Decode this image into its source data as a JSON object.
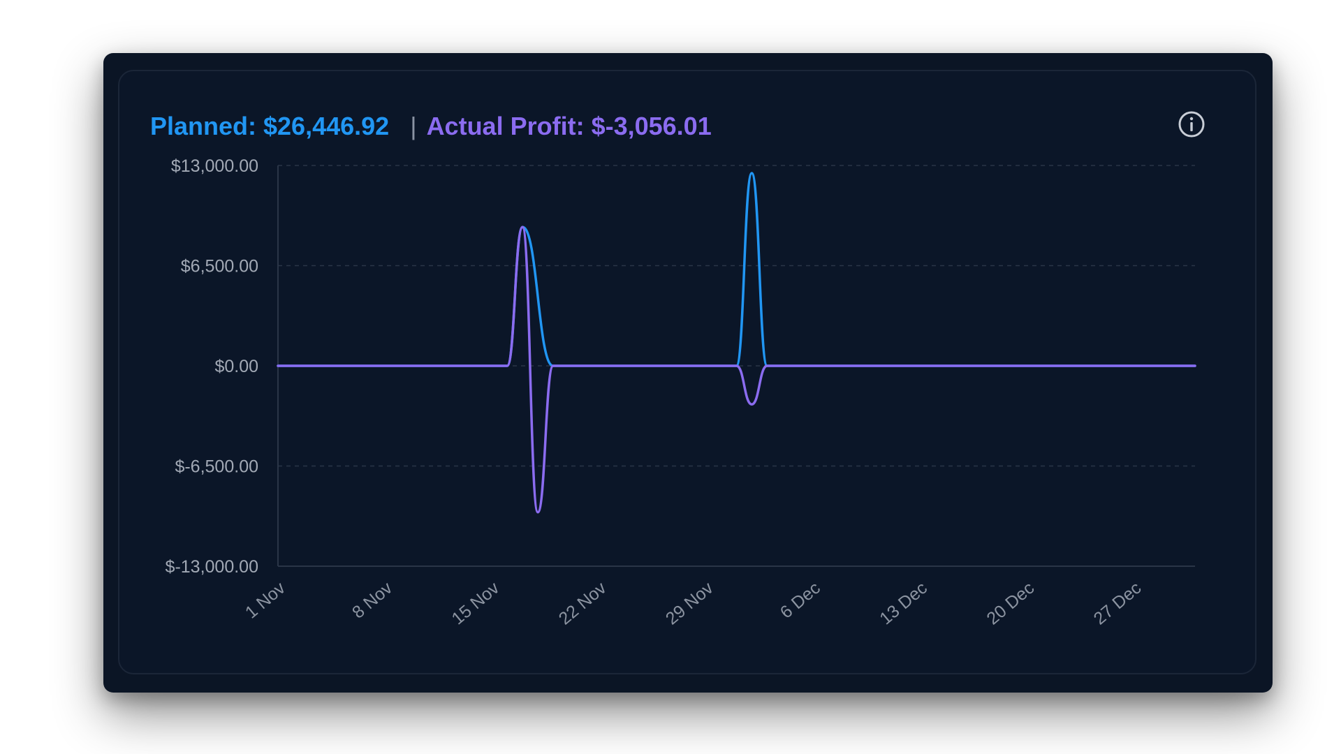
{
  "header": {
    "planned_label": "Planned: $26,446.92",
    "separator": "|",
    "actual_label": "Actual Profit: $-3,056.01"
  },
  "colors": {
    "planned": "#2196f3",
    "actual": "#8b6cf0",
    "background": "#0b1628",
    "grid": "#2a3547",
    "tick_text": "#a2a9b5"
  },
  "icons": {
    "info": "info-circle-icon"
  },
  "chart_data": {
    "type": "line",
    "x_axis": "date",
    "x_ticks": [
      "1 Nov",
      "8 Nov",
      "15 Nov",
      "22 Nov",
      "29 Nov",
      "6 Dec",
      "13 Dec",
      "20 Dec",
      "27 Dec"
    ],
    "x_range": [
      "1 Nov",
      "31 Dec"
    ],
    "y_ticks": [
      "$13,000.00",
      "$6,500.00",
      "$0.00",
      "$-6,500.00",
      "$-13,000.00"
    ],
    "ylim": [
      -13000,
      13000
    ],
    "grid": "horizontal dashed",
    "legend": "none",
    "series": [
      {
        "name": "Planned",
        "color": "#2196f3",
        "points": [
          [
            "1 Nov",
            0
          ],
          [
            "16 Nov",
            0
          ],
          [
            "17 Nov",
            9000
          ],
          [
            "19 Nov",
            0
          ],
          [
            "1 Dec",
            0
          ],
          [
            "2 Dec",
            12500
          ],
          [
            "3 Dec",
            0
          ],
          [
            "31 Dec",
            0
          ]
        ]
      },
      {
        "name": "Actual Profit",
        "color": "#8b6cf0",
        "points": [
          [
            "1 Nov",
            0
          ],
          [
            "16 Nov",
            0
          ],
          [
            "17 Nov",
            9000
          ],
          [
            "18 Nov",
            -9500
          ],
          [
            "19 Nov",
            0
          ],
          [
            "1 Dec",
            0
          ],
          [
            "2 Dec",
            -2500
          ],
          [
            "3 Dec",
            0
          ],
          [
            "31 Dec",
            0
          ]
        ]
      }
    ]
  }
}
